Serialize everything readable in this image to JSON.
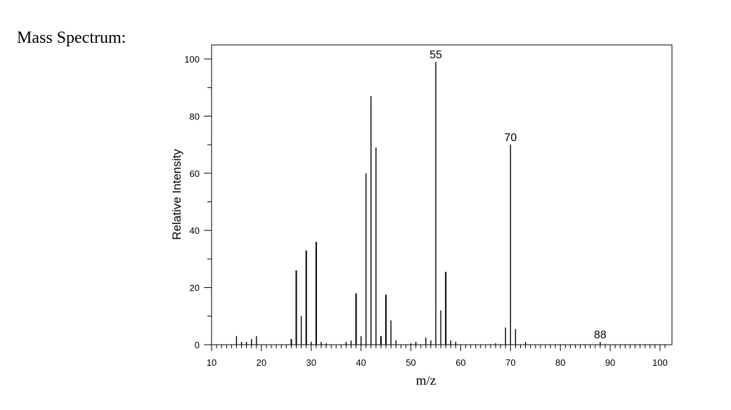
{
  "heading": "Mass Spectrum:",
  "chart_data": {
    "type": "bar",
    "xlabel": "m/z",
    "ylabel": "Relative Intensity",
    "xlim": [
      10,
      102
    ],
    "ylim": [
      0,
      100
    ],
    "x_ticks": [
      10,
      20,
      30,
      40,
      50,
      60,
      70,
      80,
      90,
      100
    ],
    "y_ticks": [
      0,
      20,
      40,
      60,
      80,
      100
    ],
    "grid": false,
    "peaks": [
      {
        "mz": 15,
        "intensity": 3
      },
      {
        "mz": 16,
        "intensity": 1
      },
      {
        "mz": 17,
        "intensity": 1
      },
      {
        "mz": 18,
        "intensity": 2
      },
      {
        "mz": 19,
        "intensity": 3
      },
      {
        "mz": 26,
        "intensity": 2
      },
      {
        "mz": 27,
        "intensity": 26
      },
      {
        "mz": 28,
        "intensity": 10
      },
      {
        "mz": 29,
        "intensity": 33
      },
      {
        "mz": 30,
        "intensity": 1
      },
      {
        "mz": 31,
        "intensity": 36
      },
      {
        "mz": 32,
        "intensity": 1
      },
      {
        "mz": 33,
        "intensity": 0.5
      },
      {
        "mz": 37,
        "intensity": 1
      },
      {
        "mz": 38,
        "intensity": 1.5
      },
      {
        "mz": 39,
        "intensity": 18
      },
      {
        "mz": 40,
        "intensity": 3
      },
      {
        "mz": 41,
        "intensity": 60
      },
      {
        "mz": 42,
        "intensity": 87
      },
      {
        "mz": 43,
        "intensity": 69
      },
      {
        "mz": 44,
        "intensity": 3
      },
      {
        "mz": 45,
        "intensity": 17.5
      },
      {
        "mz": 46,
        "intensity": 8.5
      },
      {
        "mz": 47,
        "intensity": 1.5
      },
      {
        "mz": 50,
        "intensity": 0.5
      },
      {
        "mz": 51,
        "intensity": 1
      },
      {
        "mz": 53,
        "intensity": 2.5
      },
      {
        "mz": 54,
        "intensity": 1.5
      },
      {
        "mz": 55,
        "intensity": 99
      },
      {
        "mz": 56,
        "intensity": 12
      },
      {
        "mz": 57,
        "intensity": 25.5
      },
      {
        "mz": 58,
        "intensity": 1.5
      },
      {
        "mz": 59,
        "intensity": 1
      },
      {
        "mz": 67,
        "intensity": 0.5
      },
      {
        "mz": 69,
        "intensity": 6
      },
      {
        "mz": 70,
        "intensity": 70
      },
      {
        "mz": 71,
        "intensity": 5.5
      },
      {
        "mz": 73,
        "intensity": 1
      },
      {
        "mz": 88,
        "intensity": 1
      }
    ],
    "peak_labels": [
      {
        "mz": 55,
        "text": "55"
      },
      {
        "mz": 70,
        "text": "70"
      },
      {
        "mz": 88,
        "text": "88"
      }
    ]
  }
}
